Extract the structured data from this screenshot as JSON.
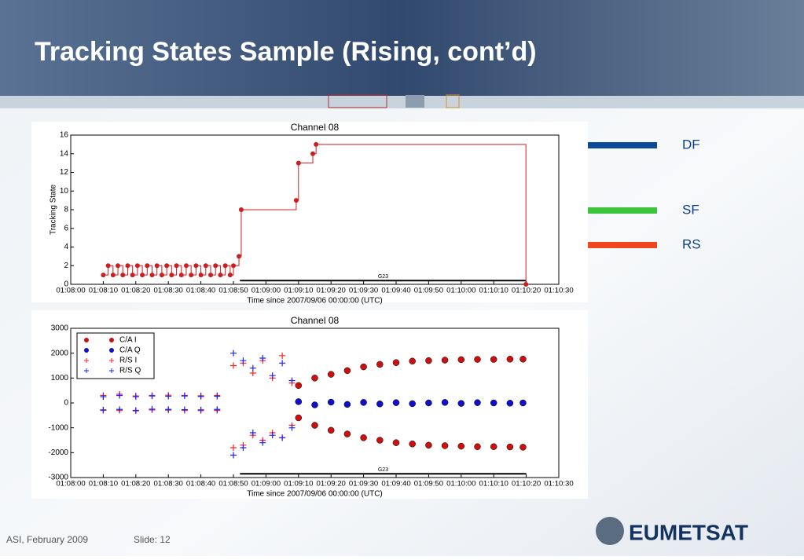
{
  "slide": {
    "title": "Tracking States Sample (Rising, cont’d)",
    "footer_left": "ASI, February 2009",
    "footer_slide": "Slide: 12",
    "logo": "EUMETSAT"
  },
  "side_labels": [
    {
      "text": "DF",
      "color": "#0b4a96"
    },
    {
      "text": "SF",
      "color": "#3cc43c"
    },
    {
      "text": "RS",
      "color": "#f0481e"
    }
  ],
  "chart_data": [
    {
      "type": "line",
      "drawstyle": "steps-post",
      "title": "Channel 08",
      "xlabel": "Time since 2007/09/06 00:00:00 (UTC)",
      "ylabel": "Tracking State",
      "xlim": [
        4080,
        4230
      ],
      "ylim": [
        0,
        16
      ],
      "yticks": [
        0,
        2,
        4,
        6,
        8,
        10,
        12,
        14,
        16
      ],
      "xticks": [
        {
          "value": 4080,
          "label": "01:08:00"
        },
        {
          "value": 4090,
          "label": "01:08:10"
        },
        {
          "value": 4100,
          "label": "01:08:20"
        },
        {
          "value": 4110,
          "label": "01:08:30"
        },
        {
          "value": 4120,
          "label": "01:08:40"
        },
        {
          "value": 4130,
          "label": "01:08:50"
        },
        {
          "value": 4140,
          "label": "01:09:00"
        },
        {
          "value": 4150,
          "label": "01:09:10"
        },
        {
          "value": 4160,
          "label": "01:09:20"
        },
        {
          "value": 4170,
          "label": "01:09:30"
        },
        {
          "value": 4180,
          "label": "01:09:40"
        },
        {
          "value": 4190,
          "label": "01:09:50"
        },
        {
          "value": 4200,
          "label": "01:10:00"
        },
        {
          "value": 4210,
          "label": "01:10:10"
        },
        {
          "value": 4220,
          "label": "01:10:20"
        },
        {
          "value": 4230,
          "label": "01:10:30"
        }
      ],
      "annotation": {
        "text": "G23",
        "x": [
          4132,
          4220
        ],
        "y": 0.4
      },
      "series": [
        {
          "color": "#cc1f1f",
          "x": [
            4090,
            4091.5,
            4093,
            4094.5,
            4096,
            4097.5,
            4099,
            4100.5,
            4102,
            4103.5,
            4105,
            4106.5,
            4108,
            4109.5,
            4111,
            4112.5,
            4114,
            4115.5,
            4117,
            4118.5,
            4120,
            4121.5,
            4123,
            4124.5,
            4126,
            4127.5,
            4129,
            4130,
            4131.7,
            4132.4,
            4149.3,
            4150,
            4154.4,
            4155.4,
            4219.9
          ],
          "values": [
            1,
            2,
            1,
            2,
            1,
            2,
            1,
            2,
            1,
            2,
            1,
            2,
            1,
            2,
            1,
            2,
            1,
            2,
            1,
            2,
            1,
            2,
            1,
            2,
            1,
            2,
            1,
            2,
            3,
            8,
            9,
            13,
            14,
            15,
            0
          ]
        }
      ]
    },
    {
      "type": "scatter",
      "title": "Channel 08",
      "xlabel": "Time since 2007/09/06 00:00:00 (UTC)",
      "xlim": [
        4080,
        4230
      ],
      "ylim": [
        -3000,
        3000
      ],
      "yticks": [
        -3000,
        -2000,
        -1000,
        0,
        1000,
        2000,
        3000
      ],
      "xticks": [
        {
          "value": 4080,
          "label": "01:08:00"
        },
        {
          "value": 4090,
          "label": "01:08:10"
        },
        {
          "value": 4100,
          "label": "01:08:20"
        },
        {
          "value": 4110,
          "label": "01:08:30"
        },
        {
          "value": 4120,
          "label": "01:08:40"
        },
        {
          "value": 4130,
          "label": "01:08:50"
        },
        {
          "value": 4140,
          "label": "01:09:00"
        },
        {
          "value": 4150,
          "label": "01:09:10"
        },
        {
          "value": 4160,
          "label": "01:09:20"
        },
        {
          "value": 4170,
          "label": "01:09:30"
        },
        {
          "value": 4180,
          "label": "01:09:40"
        },
        {
          "value": 4190,
          "label": "01:09:50"
        },
        {
          "value": 4200,
          "label": "01:10:00"
        },
        {
          "value": 4210,
          "label": "01:10:10"
        },
        {
          "value": 4220,
          "label": "01:10:20"
        },
        {
          "value": 4230,
          "label": "01:10:30"
        }
      ],
      "legend": "upper left",
      "annotation": {
        "text": "G23",
        "x": [
          4132,
          4220
        ],
        "y": -2850
      },
      "series": [
        {
          "name": "C/A  I",
          "color": "#cc1010",
          "marker": "o",
          "x": [
            4150,
            4150,
            4155,
            4155,
            4160,
            4160,
            4165,
            4165,
            4170,
            4170,
            4175,
            4175,
            4180,
            4180,
            4185,
            4185,
            4190,
            4190,
            4195,
            4195,
            4200,
            4200,
            4205,
            4205,
            4210,
            4210,
            4215,
            4215,
            4219,
            4219
          ],
          "values": [
            700,
            -600,
            1000,
            -900,
            1150,
            -1100,
            1300,
            -1250,
            1450,
            -1400,
            1550,
            -1500,
            1620,
            -1600,
            1680,
            -1650,
            1700,
            -1700,
            1720,
            -1720,
            1740,
            -1740,
            1750,
            -1760,
            1750,
            -1760,
            1760,
            -1770,
            1760,
            -1780
          ]
        },
        {
          "name": "C/A Q",
          "color": "#1010cc",
          "marker": "o",
          "x": [
            4150,
            4155,
            4160,
            4165,
            4170,
            4175,
            4180,
            4185,
            4190,
            4195,
            4200,
            4205,
            4210,
            4215,
            4219
          ],
          "values": [
            50,
            -80,
            30,
            -60,
            20,
            -40,
            10,
            -30,
            0,
            20,
            -20,
            10,
            0,
            -10,
            0
          ]
        },
        {
          "name": "R/S  I",
          "color": "#ff2020",
          "marker": "+",
          "x": [
            4090,
            4090,
            4095,
            4095,
            4100,
            4100,
            4105,
            4105,
            4110,
            4110,
            4115,
            4115,
            4120,
            4120,
            4125,
            4125,
            4130,
            4130,
            4133,
            4133,
            4136,
            4136,
            4139,
            4139,
            4142,
            4142,
            4145,
            4145,
            4148,
            4148
          ],
          "values": [
            300,
            -300,
            350,
            -300,
            280,
            -320,
            300,
            -280,
            310,
            -290,
            300,
            -300,
            290,
            -310,
            300,
            -300,
            1500,
            -1800,
            1600,
            -1700,
            1200,
            -1300,
            1700,
            -1500,
            1000,
            -1200,
            1900,
            -1400,
            800,
            -900
          ]
        },
        {
          "name": "R/S Q",
          "color": "#2020ff",
          "marker": "+",
          "x": [
            4090,
            4090,
            4095,
            4095,
            4100,
            4100,
            4105,
            4105,
            4110,
            4110,
            4115,
            4115,
            4120,
            4120,
            4125,
            4125,
            4130,
            4130,
            4133,
            4133,
            4136,
            4136,
            4139,
            4139,
            4142,
            4142,
            4145,
            4145,
            4148,
            4148
          ],
          "values": [
            250,
            -280,
            300,
            -260,
            250,
            -300,
            280,
            -250,
            270,
            -260,
            280,
            -270,
            260,
            -280,
            270,
            -260,
            2000,
            -2100,
            1700,
            -1800,
            1400,
            -1200,
            1800,
            -1600,
            1100,
            -1300,
            1600,
            -1400,
            900,
            -1000
          ]
        }
      ]
    }
  ]
}
